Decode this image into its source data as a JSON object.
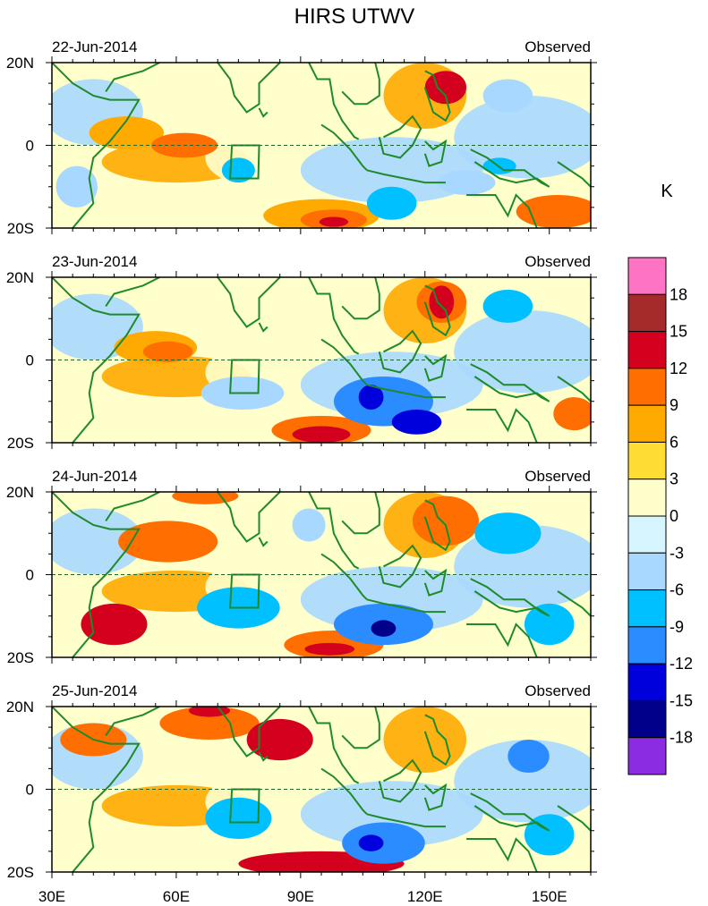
{
  "title": "HIRS UTWV",
  "chart_data": {
    "type": "heatmap",
    "title": "HIRS UTWV",
    "units_label": "K",
    "x_range": [
      30,
      160
    ],
    "y_range": [
      -20,
      20
    ],
    "x_ticks": [
      {
        "value": 30,
        "label": "30E"
      },
      {
        "value": 60,
        "label": "60E"
      },
      {
        "value": 90,
        "label": "90E"
      },
      {
        "value": 120,
        "label": "120E"
      },
      {
        "value": 150,
        "label": "150E"
      }
    ],
    "y_ticks": [
      {
        "value": 20,
        "label": "20N"
      },
      {
        "value": 0,
        "label": "0"
      },
      {
        "value": -20,
        "label": "20S"
      }
    ],
    "colorbar": {
      "tick_labels": [
        "18",
        "15",
        "12",
        "9",
        "6",
        "3",
        "0",
        "-3",
        "-6",
        "-9",
        "-12",
        "-15",
        "-18"
      ],
      "colors": [
        "#ff73c4",
        "#a52a2a",
        "#d3001e",
        "#ff6e00",
        "#ffaa00",
        "#ffdd33",
        "#ffffcc",
        "#d7f5ff",
        "#a8d8ff",
        "#00c0ff",
        "#2a8cff",
        "#0000dd",
        "#00008b",
        "#8b2be2"
      ]
    },
    "panels": [
      {
        "date": "22-Jun-2014",
        "label": "Observed",
        "features": [
          {
            "lon": 48,
            "lat": 3,
            "rx": 9,
            "ry": 4,
            "level": 4
          },
          {
            "lon": 62,
            "lat": 0,
            "rx": 8,
            "ry": 3,
            "level": 3
          },
          {
            "lon": 95,
            "lat": -17,
            "rx": 14,
            "ry": 4,
            "level": 4
          },
          {
            "lon": 98,
            "lat": -18,
            "rx": 8,
            "ry": 2.5,
            "level": 3
          },
          {
            "lon": 98,
            "lat": -18.5,
            "rx": 3.5,
            "ry": 1.2,
            "level": 2
          },
          {
            "lon": 125,
            "lat": 14,
            "rx": 5,
            "ry": 4,
            "level": 2
          },
          {
            "lon": 152,
            "lat": -16,
            "rx": 10,
            "ry": 4,
            "level": 3
          },
          {
            "lon": 75,
            "lat": -6,
            "rx": 4,
            "ry": 3,
            "level": -3
          },
          {
            "lon": 112,
            "lat": -14,
            "rx": 6,
            "ry": 4,
            "level": -3
          },
          {
            "lon": 130,
            "lat": -9,
            "rx": 7,
            "ry": 3,
            "level": -2
          },
          {
            "lon": 138,
            "lat": -5,
            "rx": 4,
            "ry": 2,
            "level": -3
          },
          {
            "lon": 140,
            "lat": 12,
            "rx": 6,
            "ry": 4,
            "level": -2
          },
          {
            "lon": 36,
            "lat": -10,
            "rx": 5,
            "ry": 5,
            "level": -2
          }
        ]
      },
      {
        "date": "23-Jun-2014",
        "label": "Observed",
        "features": [
          {
            "lon": 55,
            "lat": 3,
            "rx": 10,
            "ry": 4,
            "level": 4
          },
          {
            "lon": 58,
            "lat": 2,
            "rx": 6,
            "ry": 2.5,
            "level": 3
          },
          {
            "lon": 95,
            "lat": -17,
            "rx": 12,
            "ry": 3.5,
            "level": 3
          },
          {
            "lon": 95,
            "lat": -18,
            "rx": 7,
            "ry": 2,
            "level": 2
          },
          {
            "lon": 124,
            "lat": 14,
            "rx": 6,
            "ry": 5,
            "level": 3
          },
          {
            "lon": 124,
            "lat": 14,
            "rx": 3,
            "ry": 4,
            "level": 2
          },
          {
            "lon": 156,
            "lat": -13,
            "rx": 5,
            "ry": 4,
            "level": 3
          },
          {
            "lon": 110,
            "lat": -10,
            "rx": 12,
            "ry": 6,
            "level": -4
          },
          {
            "lon": 107,
            "lat": -9,
            "rx": 3,
            "ry": 3,
            "level": -5
          },
          {
            "lon": 118,
            "lat": -15,
            "rx": 6,
            "ry": 3,
            "level": -5
          },
          {
            "lon": 140,
            "lat": 13,
            "rx": 6,
            "ry": 4,
            "level": -3
          },
          {
            "lon": 76,
            "lat": -8,
            "rx": 10,
            "ry": 4,
            "level": -2
          }
        ]
      },
      {
        "date": "24-Jun-2014",
        "label": "Observed",
        "features": [
          {
            "lon": 58,
            "lat": 8,
            "rx": 12,
            "ry": 5,
            "level": 3
          },
          {
            "lon": 67,
            "lat": 19,
            "rx": 8,
            "ry": 2,
            "level": 3
          },
          {
            "lon": 98,
            "lat": -17,
            "rx": 12,
            "ry": 3.5,
            "level": 3
          },
          {
            "lon": 97,
            "lat": -18,
            "rx": 6,
            "ry": 1.5,
            "level": 2
          },
          {
            "lon": 125,
            "lat": 13,
            "rx": 8,
            "ry": 6,
            "level": 3
          },
          {
            "lon": 45,
            "lat": -12,
            "rx": 8,
            "ry": 5,
            "level": 2
          },
          {
            "lon": 110,
            "lat": -12,
            "rx": 12,
            "ry": 5,
            "level": -4
          },
          {
            "lon": 110,
            "lat": -13,
            "rx": 3,
            "ry": 2,
            "level": -6
          },
          {
            "lon": 75,
            "lat": -8,
            "rx": 10,
            "ry": 5,
            "level": -3
          },
          {
            "lon": 92,
            "lat": 12,
            "rx": 4,
            "ry": 4,
            "level": -2
          },
          {
            "lon": 140,
            "lat": 10,
            "rx": 8,
            "ry": 5,
            "level": -3
          },
          {
            "lon": 150,
            "lat": -12,
            "rx": 6,
            "ry": 5,
            "level": -3
          }
        ]
      },
      {
        "date": "25-Jun-2014",
        "label": "Observed",
        "features": [
          {
            "lon": 68,
            "lat": 16,
            "rx": 12,
            "ry": 4,
            "level": 3
          },
          {
            "lon": 68,
            "lat": 19,
            "rx": 5,
            "ry": 1.5,
            "level": 2
          },
          {
            "lon": 40,
            "lat": 12,
            "rx": 8,
            "ry": 4,
            "level": 3
          },
          {
            "lon": 85,
            "lat": 12,
            "rx": 8,
            "ry": 5,
            "level": 2
          },
          {
            "lon": 95,
            "lat": -18,
            "rx": 20,
            "ry": 3,
            "level": 2
          },
          {
            "lon": 110,
            "lat": -13,
            "rx": 10,
            "ry": 5,
            "level": -4
          },
          {
            "lon": 107,
            "lat": -13,
            "rx": 3,
            "ry": 2,
            "level": -5
          },
          {
            "lon": 75,
            "lat": -7,
            "rx": 8,
            "ry": 5,
            "level": -3
          },
          {
            "lon": 145,
            "lat": 8,
            "rx": 5,
            "ry": 4,
            "level": -4
          },
          {
            "lon": 150,
            "lat": -11,
            "rx": 6,
            "ry": 5,
            "level": -3
          }
        ]
      }
    ]
  }
}
